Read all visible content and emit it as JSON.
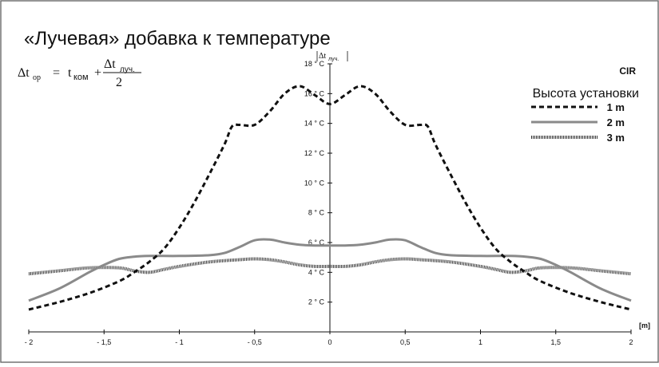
{
  "chart_data": {
    "type": "line",
    "title": "«Лучевая» добавка к температуре",
    "formula": {
      "lhs": "Δt",
      "lhs_sub": "ор",
      "eq": "=",
      "t": "t",
      "t_sub": "ком",
      "plus": "+",
      "numerator": "Δt",
      "numerator_sub": "луч.",
      "denominator": "2"
    },
    "ylabel": "Δt",
    "ylabel_sub": "луч.",
    "xunit": "[m]",
    "brand": "CIR",
    "legend_title": "Высота установки",
    "legend_position": "top-right",
    "xlim": [
      -2,
      2
    ],
    "ylim": [
      0,
      18
    ],
    "x_ticks": [
      {
        "v": -2,
        "label": "- 2"
      },
      {
        "v": -1.5,
        "label": "- 1,5"
      },
      {
        "v": -1,
        "label": "- 1"
      },
      {
        "v": -0.5,
        "label": "- 0,5"
      },
      {
        "v": 0,
        "label": "0"
      },
      {
        "v": 0.5,
        "label": "0,5"
      },
      {
        "v": 1,
        "label": "1"
      },
      {
        "v": 1.5,
        "label": "1,5"
      },
      {
        "v": 2,
        "label": "2"
      }
    ],
    "y_ticks": [
      {
        "v": 2,
        "label": "2 ° C"
      },
      {
        "v": 4,
        "label": "4 ° C"
      },
      {
        "v": 6,
        "label": "6 ° C"
      },
      {
        "v": 8,
        "label": "8 ° C"
      },
      {
        "v": 10,
        "label": "10 ° C"
      },
      {
        "v": 12,
        "label": "12 ° C"
      },
      {
        "v": 14,
        "label": "14 ° C"
      },
      {
        "v": 16,
        "label": "16 ° C"
      },
      {
        "v": 18,
        "label": "18 ° C"
      }
    ],
    "series": [
      {
        "name": "1 m",
        "style": "dashed",
        "color": "#111111",
        "points": [
          [
            -2,
            1.5
          ],
          [
            -1.8,
            2.0
          ],
          [
            -1.6,
            2.6
          ],
          [
            -1.4,
            3.4
          ],
          [
            -1.3,
            4.0
          ],
          [
            -1.2,
            4.7
          ],
          [
            -1.1,
            5.6
          ],
          [
            -1.0,
            7.0
          ],
          [
            -0.9,
            8.7
          ],
          [
            -0.8,
            10.6
          ],
          [
            -0.7,
            12.6
          ],
          [
            -0.65,
            13.8
          ],
          [
            -0.6,
            13.9
          ],
          [
            -0.5,
            13.9
          ],
          [
            -0.4,
            14.8
          ],
          [
            -0.3,
            16.0
          ],
          [
            -0.2,
            16.5
          ],
          [
            -0.1,
            15.9
          ],
          [
            0,
            15.3
          ],
          [
            0.1,
            15.9
          ],
          [
            0.2,
            16.5
          ],
          [
            0.3,
            16.0
          ],
          [
            0.4,
            14.8
          ],
          [
            0.5,
            13.9
          ],
          [
            0.6,
            13.9
          ],
          [
            0.65,
            13.8
          ],
          [
            0.7,
            12.6
          ],
          [
            0.8,
            10.6
          ],
          [
            0.9,
            8.7
          ],
          [
            1.0,
            7.0
          ],
          [
            1.1,
            5.6
          ],
          [
            1.2,
            4.7
          ],
          [
            1.3,
            4.0
          ],
          [
            1.4,
            3.4
          ],
          [
            1.6,
            2.6
          ],
          [
            1.8,
            2.0
          ],
          [
            2,
            1.5
          ]
        ]
      },
      {
        "name": "2 m",
        "style": "solid",
        "color": "#8a8a8a",
        "points": [
          [
            -2,
            2.1
          ],
          [
            -1.8,
            2.9
          ],
          [
            -1.6,
            4.0
          ],
          [
            -1.5,
            4.5
          ],
          [
            -1.4,
            4.9
          ],
          [
            -1.3,
            5.05
          ],
          [
            -1.2,
            5.1
          ],
          [
            -1.0,
            5.1
          ],
          [
            -0.8,
            5.15
          ],
          [
            -0.7,
            5.3
          ],
          [
            -0.6,
            5.7
          ],
          [
            -0.5,
            6.15
          ],
          [
            -0.4,
            6.2
          ],
          [
            -0.3,
            6.0
          ],
          [
            -0.2,
            5.85
          ],
          [
            -0.1,
            5.8
          ],
          [
            0,
            5.8
          ],
          [
            0.1,
            5.8
          ],
          [
            0.2,
            5.85
          ],
          [
            0.3,
            6.0
          ],
          [
            0.4,
            6.2
          ],
          [
            0.5,
            6.15
          ],
          [
            0.6,
            5.7
          ],
          [
            0.7,
            5.3
          ],
          [
            0.8,
            5.15
          ],
          [
            1.0,
            5.1
          ],
          [
            1.2,
            5.1
          ],
          [
            1.3,
            5.05
          ],
          [
            1.4,
            4.9
          ],
          [
            1.5,
            4.5
          ],
          [
            1.6,
            4.0
          ],
          [
            1.8,
            2.9
          ],
          [
            2,
            2.1
          ]
        ]
      },
      {
        "name": "3 m",
        "style": "dotted",
        "color": "#333333",
        "points": [
          [
            -2,
            3.9
          ],
          [
            -1.8,
            4.1
          ],
          [
            -1.6,
            4.3
          ],
          [
            -1.4,
            4.3
          ],
          [
            -1.3,
            4.1
          ],
          [
            -1.2,
            4.0
          ],
          [
            -1.1,
            4.2
          ],
          [
            -1.0,
            4.4
          ],
          [
            -0.8,
            4.7
          ],
          [
            -0.6,
            4.85
          ],
          [
            -0.5,
            4.9
          ],
          [
            -0.4,
            4.85
          ],
          [
            -0.3,
            4.7
          ],
          [
            -0.2,
            4.5
          ],
          [
            -0.1,
            4.4
          ],
          [
            0,
            4.4
          ],
          [
            0.1,
            4.4
          ],
          [
            0.2,
            4.5
          ],
          [
            0.3,
            4.7
          ],
          [
            0.4,
            4.85
          ],
          [
            0.5,
            4.9
          ],
          [
            0.6,
            4.85
          ],
          [
            0.8,
            4.7
          ],
          [
            1.0,
            4.4
          ],
          [
            1.1,
            4.2
          ],
          [
            1.2,
            4.0
          ],
          [
            1.3,
            4.1
          ],
          [
            1.4,
            4.3
          ],
          [
            1.6,
            4.3
          ],
          [
            1.8,
            4.1
          ],
          [
            2,
            3.9
          ]
        ]
      }
    ]
  }
}
